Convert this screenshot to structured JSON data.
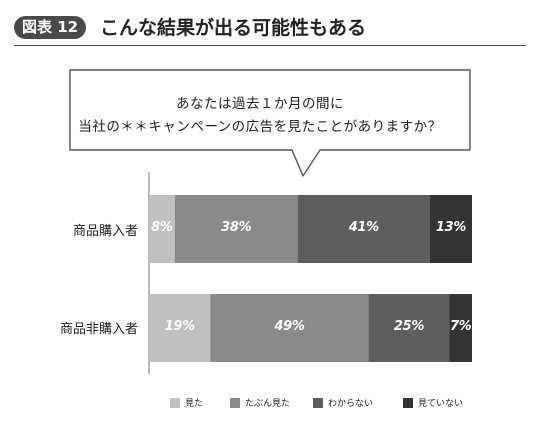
{
  "header": {
    "figure_badge": "図表 12",
    "title": "こんな結果が出る可能性もある"
  },
  "question": {
    "line1": "あなたは過去１か月の間に",
    "line2": "当社の＊＊キャンペーンの広告を見たことがありますか？"
  },
  "chart_data": {
    "type": "bar",
    "orientation": "horizontal",
    "stacked": true,
    "percent_stacked": true,
    "categories": [
      "商品購入者",
      "商品非購入者"
    ],
    "series": [
      {
        "name": "見た",
        "values": [
          8,
          19
        ],
        "color": "#c0c0c0"
      },
      {
        "name": "たぶん見た",
        "values": [
          38,
          49
        ],
        "color": "#8a8a8a"
      },
      {
        "name": "わからない",
        "values": [
          41,
          25
        ],
        "color": "#5e5e5e"
      },
      {
        "name": "見ていない",
        "values": [
          13,
          7
        ],
        "color": "#333333"
      }
    ],
    "value_labels": [
      [
        "8%",
        "38%",
        "41%",
        "13%"
      ],
      [
        "19%",
        "49%",
        "25%",
        "7%"
      ]
    ],
    "xlim": [
      0,
      100
    ],
    "legend_position": "bottom"
  }
}
